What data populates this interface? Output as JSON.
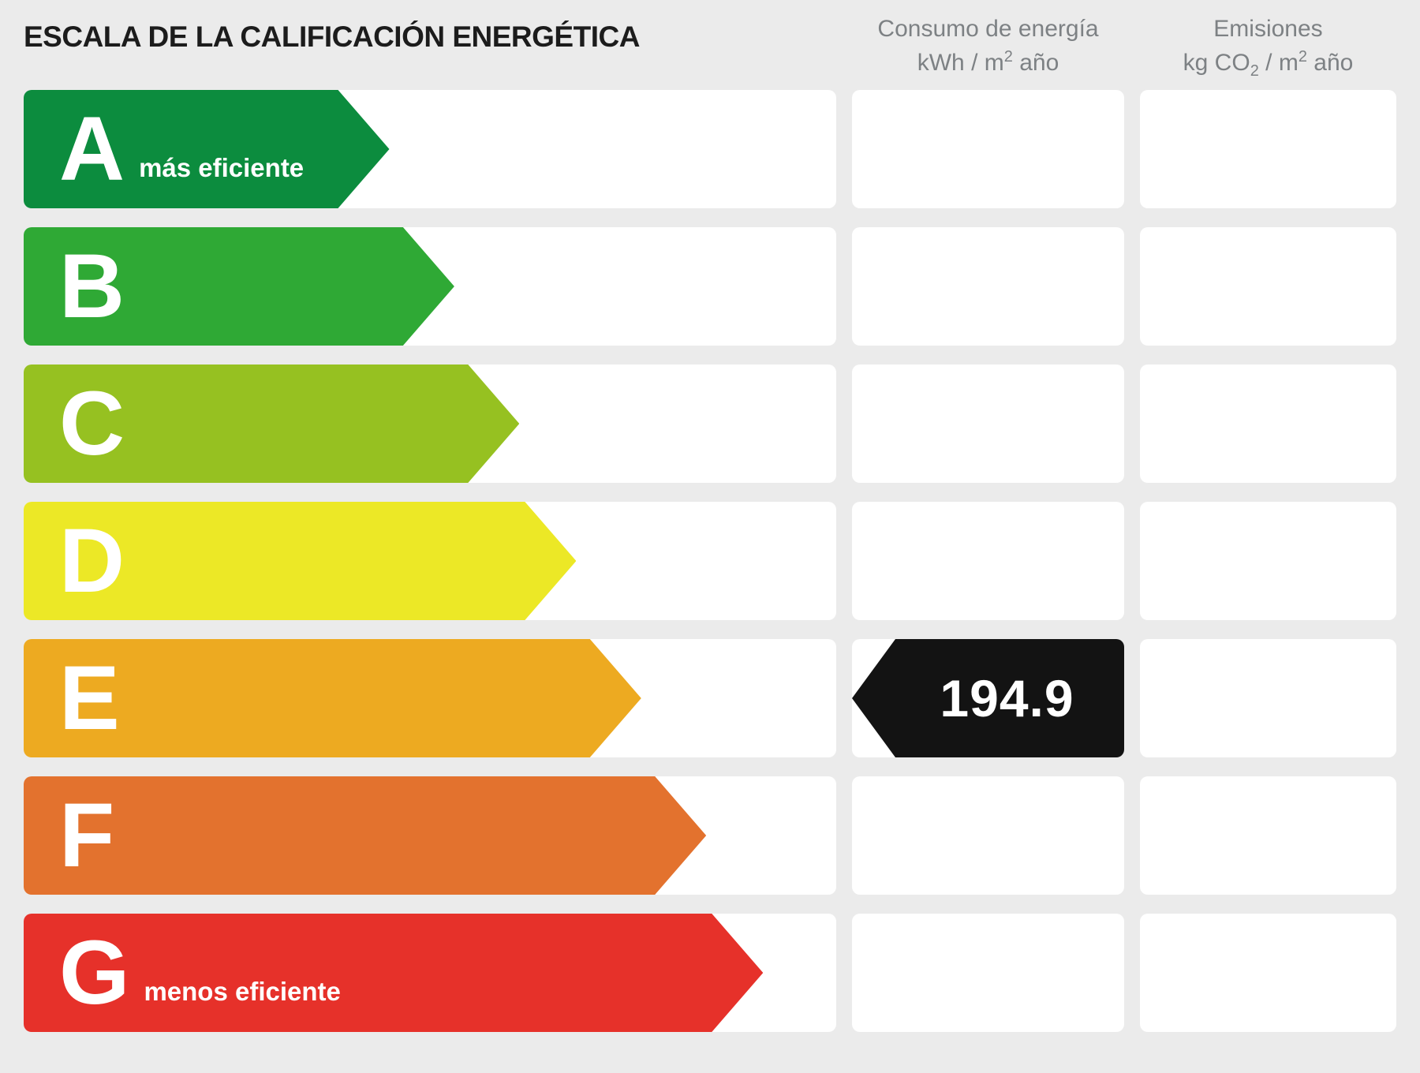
{
  "title": "ESCALA DE LA CALIFICACIÓN ENERGÉTICA",
  "columns": {
    "consumo": {
      "line1": "Consumo de energía",
      "unit_pre": "kWh / m",
      "unit_sup": "2",
      "unit_post": " año"
    },
    "emisiones": {
      "line1": "Emisiones",
      "unit_pre": "kg CO",
      "unit_sub": "2",
      "unit_mid": " / m",
      "unit_sup": "2",
      "unit_post": " año"
    }
  },
  "rows": [
    {
      "letter": "A",
      "label": "más eficiente",
      "color": "#0c8c3e",
      "width_pct": 45
    },
    {
      "letter": "B",
      "color": "#2fa935",
      "width_pct": 53
    },
    {
      "letter": "C",
      "color": "#96c121",
      "width_pct": 61
    },
    {
      "letter": "D",
      "color": "#ece826",
      "width_pct": 68
    },
    {
      "letter": "E",
      "color": "#edaa21",
      "width_pct": 76
    },
    {
      "letter": "F",
      "color": "#e3722e",
      "width_pct": 84
    },
    {
      "letter": "G",
      "label": "menos eficiente",
      "color": "#e6312a",
      "width_pct": 91
    }
  ],
  "indicator": {
    "value": "194.9",
    "rating_row": "E",
    "column": "consumo",
    "background": "#131313",
    "text_color": "#ffffff"
  },
  "page_background": "#ebebeb",
  "chart_data": {
    "type": "bar",
    "title": "ESCALA DE LA CALIFICACIÓN ENERGÉTICA",
    "categories": [
      "A",
      "B",
      "C",
      "D",
      "E",
      "F",
      "G"
    ],
    "series": [
      {
        "name": "relative_arrow_length_pct",
        "values": [
          45,
          53,
          61,
          68,
          76,
          84,
          91
        ]
      }
    ],
    "bar_colors": [
      "#0c8c3e",
      "#2fa935",
      "#96c121",
      "#ece826",
      "#edaa21",
      "#e3722e",
      "#e6312a"
    ],
    "columns": [
      "Consumo de energía kWh / m² año",
      "Emisiones kg CO₂ / m² año"
    ],
    "annotations": [
      {
        "text": "más eficiente",
        "category": "A"
      },
      {
        "text": "menos eficiente",
        "category": "G"
      },
      {
        "text": "194.9",
        "category": "E",
        "column": "Consumo de energía kWh / m² año"
      }
    ],
    "consumo_value": {
      "rating": "E",
      "value": 194.9
    },
    "emisiones_value": "",
    "legend": "none",
    "grid": "off"
  }
}
